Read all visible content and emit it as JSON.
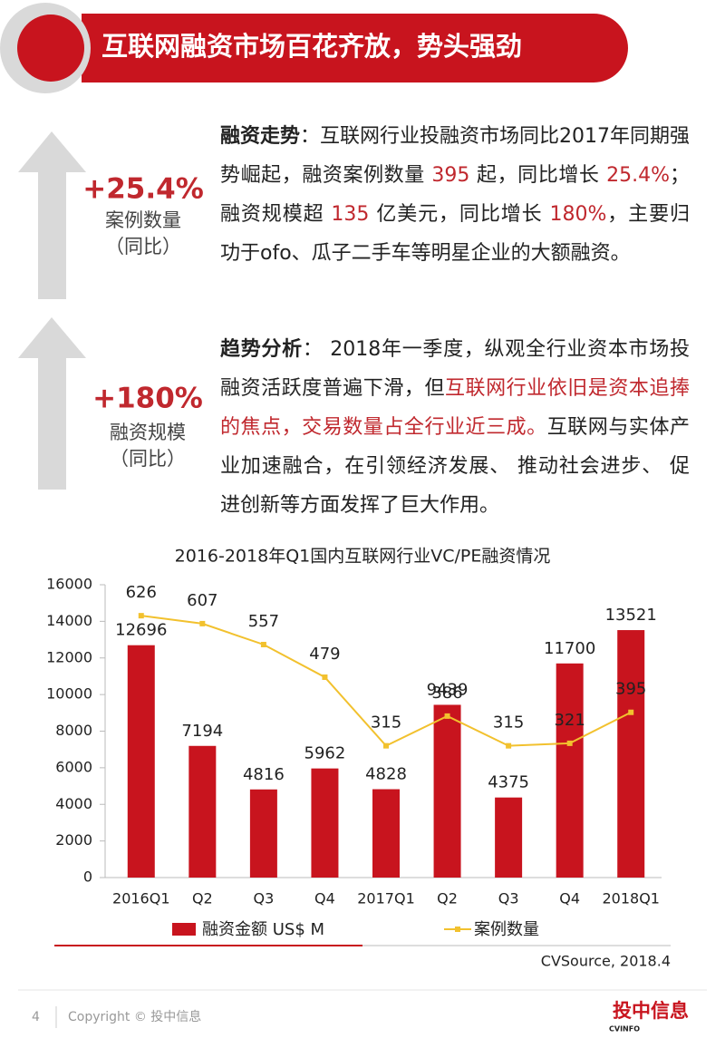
{
  "header": {
    "title": "互联网融资市场百花齐放，势头强劲"
  },
  "sections": [
    {
      "stat": "+25.4%",
      "stat_label": "案例数量",
      "stat_note": "（同比）",
      "paragraph": [
        {
          "text": "融资走势",
          "bold": true
        },
        {
          "text": "：互联网行业投融资市场同比2017年同期强势崛起，融资案例数量 "
        },
        {
          "text": "395",
          "color": "#c0282e"
        },
        {
          "text": " 起，同比增长 "
        },
        {
          "text": "25.4%",
          "color": "#c0282e"
        },
        {
          "text": "；融资规模超 "
        },
        {
          "text": "135",
          "color": "#c0282e"
        },
        {
          "text": " 亿美元，同比增长 "
        },
        {
          "text": "180%",
          "color": "#c0282e"
        },
        {
          "text": "，主要归功于ofo、瓜子二手车等明星企业的大额融资。"
        }
      ]
    },
    {
      "stat": "+180%",
      "stat_label": "融资规模",
      "stat_note": "（同比）",
      "paragraph": [
        {
          "text": "趋势分析",
          "bold": true
        },
        {
          "text": "： 2018年一季度，纵观全行业资本市场投融资活跃度普遍下滑，但"
        },
        {
          "text": "互联网行业依旧是资本追捧的焦点，交易数量占全行业近三成。",
          "color": "#c0282e"
        },
        {
          "text": "互联网与实体产业加速融合，在引领经济发展、 推动社会进步、 促进创新等方面发挥了巨大作用。"
        }
      ]
    }
  ],
  "chart_data": {
    "type": "bar",
    "title": "2016-2018年Q1国内互联网行业VC/PE融资情况",
    "categories": [
      "2016Q1",
      "Q2",
      "Q3",
      "Q4",
      "2017Q1",
      "Q2",
      "Q3",
      "Q4",
      "2018Q1"
    ],
    "series": [
      {
        "name": "融资金额 US$ M",
        "type": "bar",
        "color": "#c8141e",
        "values": [
          12696,
          7194,
          4816,
          5962,
          4828,
          9439,
          4375,
          11700,
          13521
        ]
      },
      {
        "name": "案例数量",
        "type": "line",
        "axis": "y2",
        "color": "#f2c12e",
        "values": [
          626,
          607,
          557,
          479,
          315,
          386,
          315,
          321,
          395
        ]
      }
    ],
    "ylim": [
      0,
      16000
    ],
    "yticks": [
      0,
      2000,
      4000,
      6000,
      8000,
      10000,
      12000,
      14000,
      16000
    ],
    "y2lim": [
      0,
      700
    ],
    "source": "CVSource, 2018.4"
  },
  "footer": {
    "page": "4",
    "copyright": "Copyright © 投中信息",
    "logo": "投中信息",
    "logo_sub": "CVINFO"
  }
}
